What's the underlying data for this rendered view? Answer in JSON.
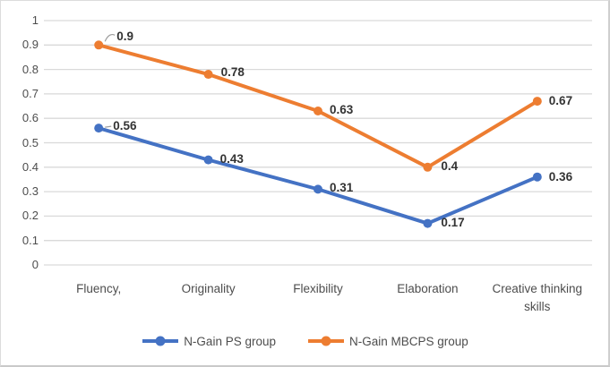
{
  "chart_data": {
    "type": "line",
    "title": "",
    "xlabel": "",
    "ylabel": "",
    "categories": [
      "Fluency,",
      "Originality",
      "Flexibility",
      "Elaboration",
      "Creative thinking skills"
    ],
    "series": [
      {
        "name": "N-Gain PS group",
        "color": "#4472C4",
        "values": [
          0.56,
          0.43,
          0.31,
          0.17,
          0.36
        ],
        "labels": [
          "0.56",
          "0.43",
          "0.31",
          "0.17",
          "0.36"
        ]
      },
      {
        "name": "N-Gain MBCPS group",
        "color": "#ED7D31",
        "values": [
          0.9,
          0.78,
          0.63,
          0.4,
          0.67
        ],
        "labels": [
          "0.9",
          "0.78",
          "0.63",
          "0.4",
          "0.67"
        ]
      }
    ],
    "ylim": [
      0,
      1
    ],
    "ytick_step": 0.1,
    "ytick_labels": [
      "0",
      "0.1",
      "0.2",
      "0.3",
      "0.4",
      "0.5",
      "0.6",
      "0.7",
      "0.8",
      "0.9",
      "1"
    ],
    "grid": "horizontal",
    "gridline_color": "#d9d9d9",
    "legend_position": "bottom",
    "text_color": "#4d4d4d",
    "data_label_color": "#333333",
    "background_color": "#ffffff"
  }
}
